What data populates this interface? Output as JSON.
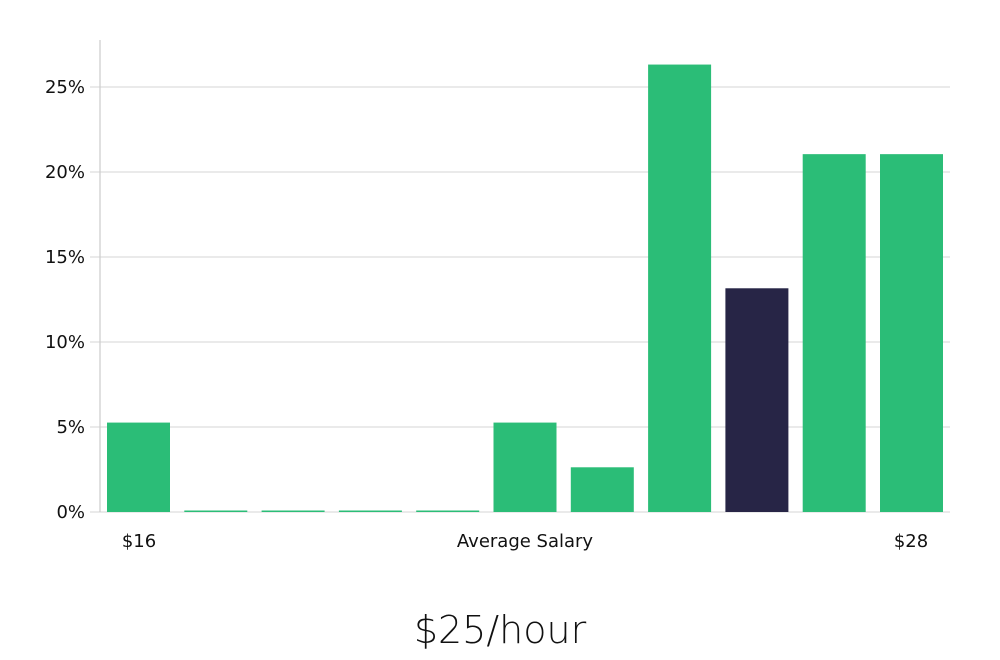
{
  "chart_data": {
    "type": "bar",
    "title": "$25/hour",
    "xlabel": "Average Salary",
    "ylabel": "",
    "x_tick_labels": {
      "left": "$16",
      "center": "Average Salary",
      "right": "$28"
    },
    "y_ticks": [
      "0%",
      "5%",
      "10%",
      "15%",
      "20%",
      "25%"
    ],
    "ylim": [
      0,
      27.5
    ],
    "grid": true,
    "categories": [
      "bin1",
      "bin2",
      "bin3",
      "bin4",
      "bin5",
      "bin6",
      "bin7",
      "bin8",
      "bin9",
      "bin10",
      "bin11"
    ],
    "values": [
      5.26,
      0,
      0,
      0,
      0,
      5.26,
      2.63,
      26.32,
      13.16,
      21.05,
      21.05
    ],
    "highlight_index": 8,
    "colors": {
      "bar": "#2bbd77",
      "highlight": "#272546",
      "grid": "#dddddd",
      "axis": "#cccccc"
    }
  },
  "footer": {
    "salary": "$25/hour"
  }
}
